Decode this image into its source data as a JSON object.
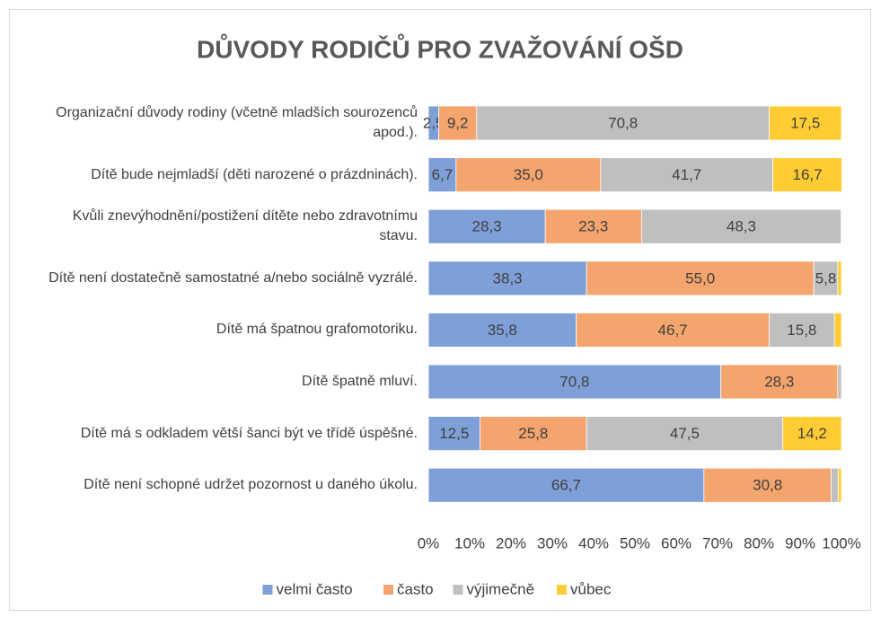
{
  "chart_data": {
    "type": "stacked-bar-horizontal",
    "title": "DŮVODY RODIČŮ PRO ZVAŽOVÁNÍ OŠD",
    "categories": [
      "Organizační důvody rodiny (včetně mladších sourozenců apod.).",
      "Dítě bude nejmladší (děti narozené o prázdninách).",
      "Kvůli znevýhodnění/postižení dítěte nebo zdravotnímu stavu.",
      "Dítě není dostatečně samostatné a/nebo sociálně vyzrálé.",
      "Dítě má špatnou grafomotoriku.",
      "Dítě špatně mluví.",
      "Dítě má s odkladem větší šanci být ve třídě úspěšné.",
      "Dítě není schopné udržet pozornost u daného úkolu."
    ],
    "series": [
      {
        "name": "velmi často",
        "color": "#7f9fd8",
        "values": [
          2.5,
          6.7,
          28.3,
          38.3,
          35.8,
          70.8,
          12.5,
          66.7
        ],
        "value_labels": [
          "2,5",
          "6,7",
          "28,3",
          "38,3",
          "35,8",
          "70,8",
          "12,5",
          "66,7"
        ]
      },
      {
        "name": "často",
        "color": "#f4a46d",
        "values": [
          9.2,
          35.0,
          23.3,
          55.0,
          46.7,
          28.3,
          25.8,
          30.8
        ],
        "value_labels": [
          "9,2",
          "35,0",
          "23,3",
          "55,0",
          "46,7",
          "28,3",
          "25,8",
          "30,8"
        ]
      },
      {
        "name": "výjimečně",
        "color": "#bfbfbf",
        "values": [
          70.8,
          41.7,
          48.3,
          5.8,
          15.8,
          0.9,
          47.5,
          1.7
        ],
        "value_labels": [
          "70,8",
          "41,7",
          "48,3",
          "5,8",
          "15,8",
          null,
          "47,5",
          null
        ]
      },
      {
        "name": "vůbec",
        "color": "#ffcc33",
        "values": [
          17.5,
          16.7,
          0,
          0.9,
          1.7,
          0,
          14.2,
          0.8
        ],
        "value_labels": [
          "17,5",
          "16,7",
          null,
          null,
          null,
          null,
          "14,2",
          null
        ]
      }
    ],
    "xlim": [
      0,
      100
    ],
    "xticks": [
      {
        "value": 0,
        "label": "0%"
      },
      {
        "value": 10,
        "label": "10%"
      },
      {
        "value": 20,
        "label": "20%"
      },
      {
        "value": 30,
        "label": "30%"
      },
      {
        "value": 40,
        "label": "40%"
      },
      {
        "value": 50,
        "label": "50%"
      },
      {
        "value": 60,
        "label": "60%"
      },
      {
        "value": 70,
        "label": "70%"
      },
      {
        "value": 80,
        "label": "80%"
      },
      {
        "value": 90,
        "label": "90%"
      },
      {
        "value": 100,
        "label": "100%"
      }
    ],
    "grid": false,
    "legend": "bottom"
  }
}
